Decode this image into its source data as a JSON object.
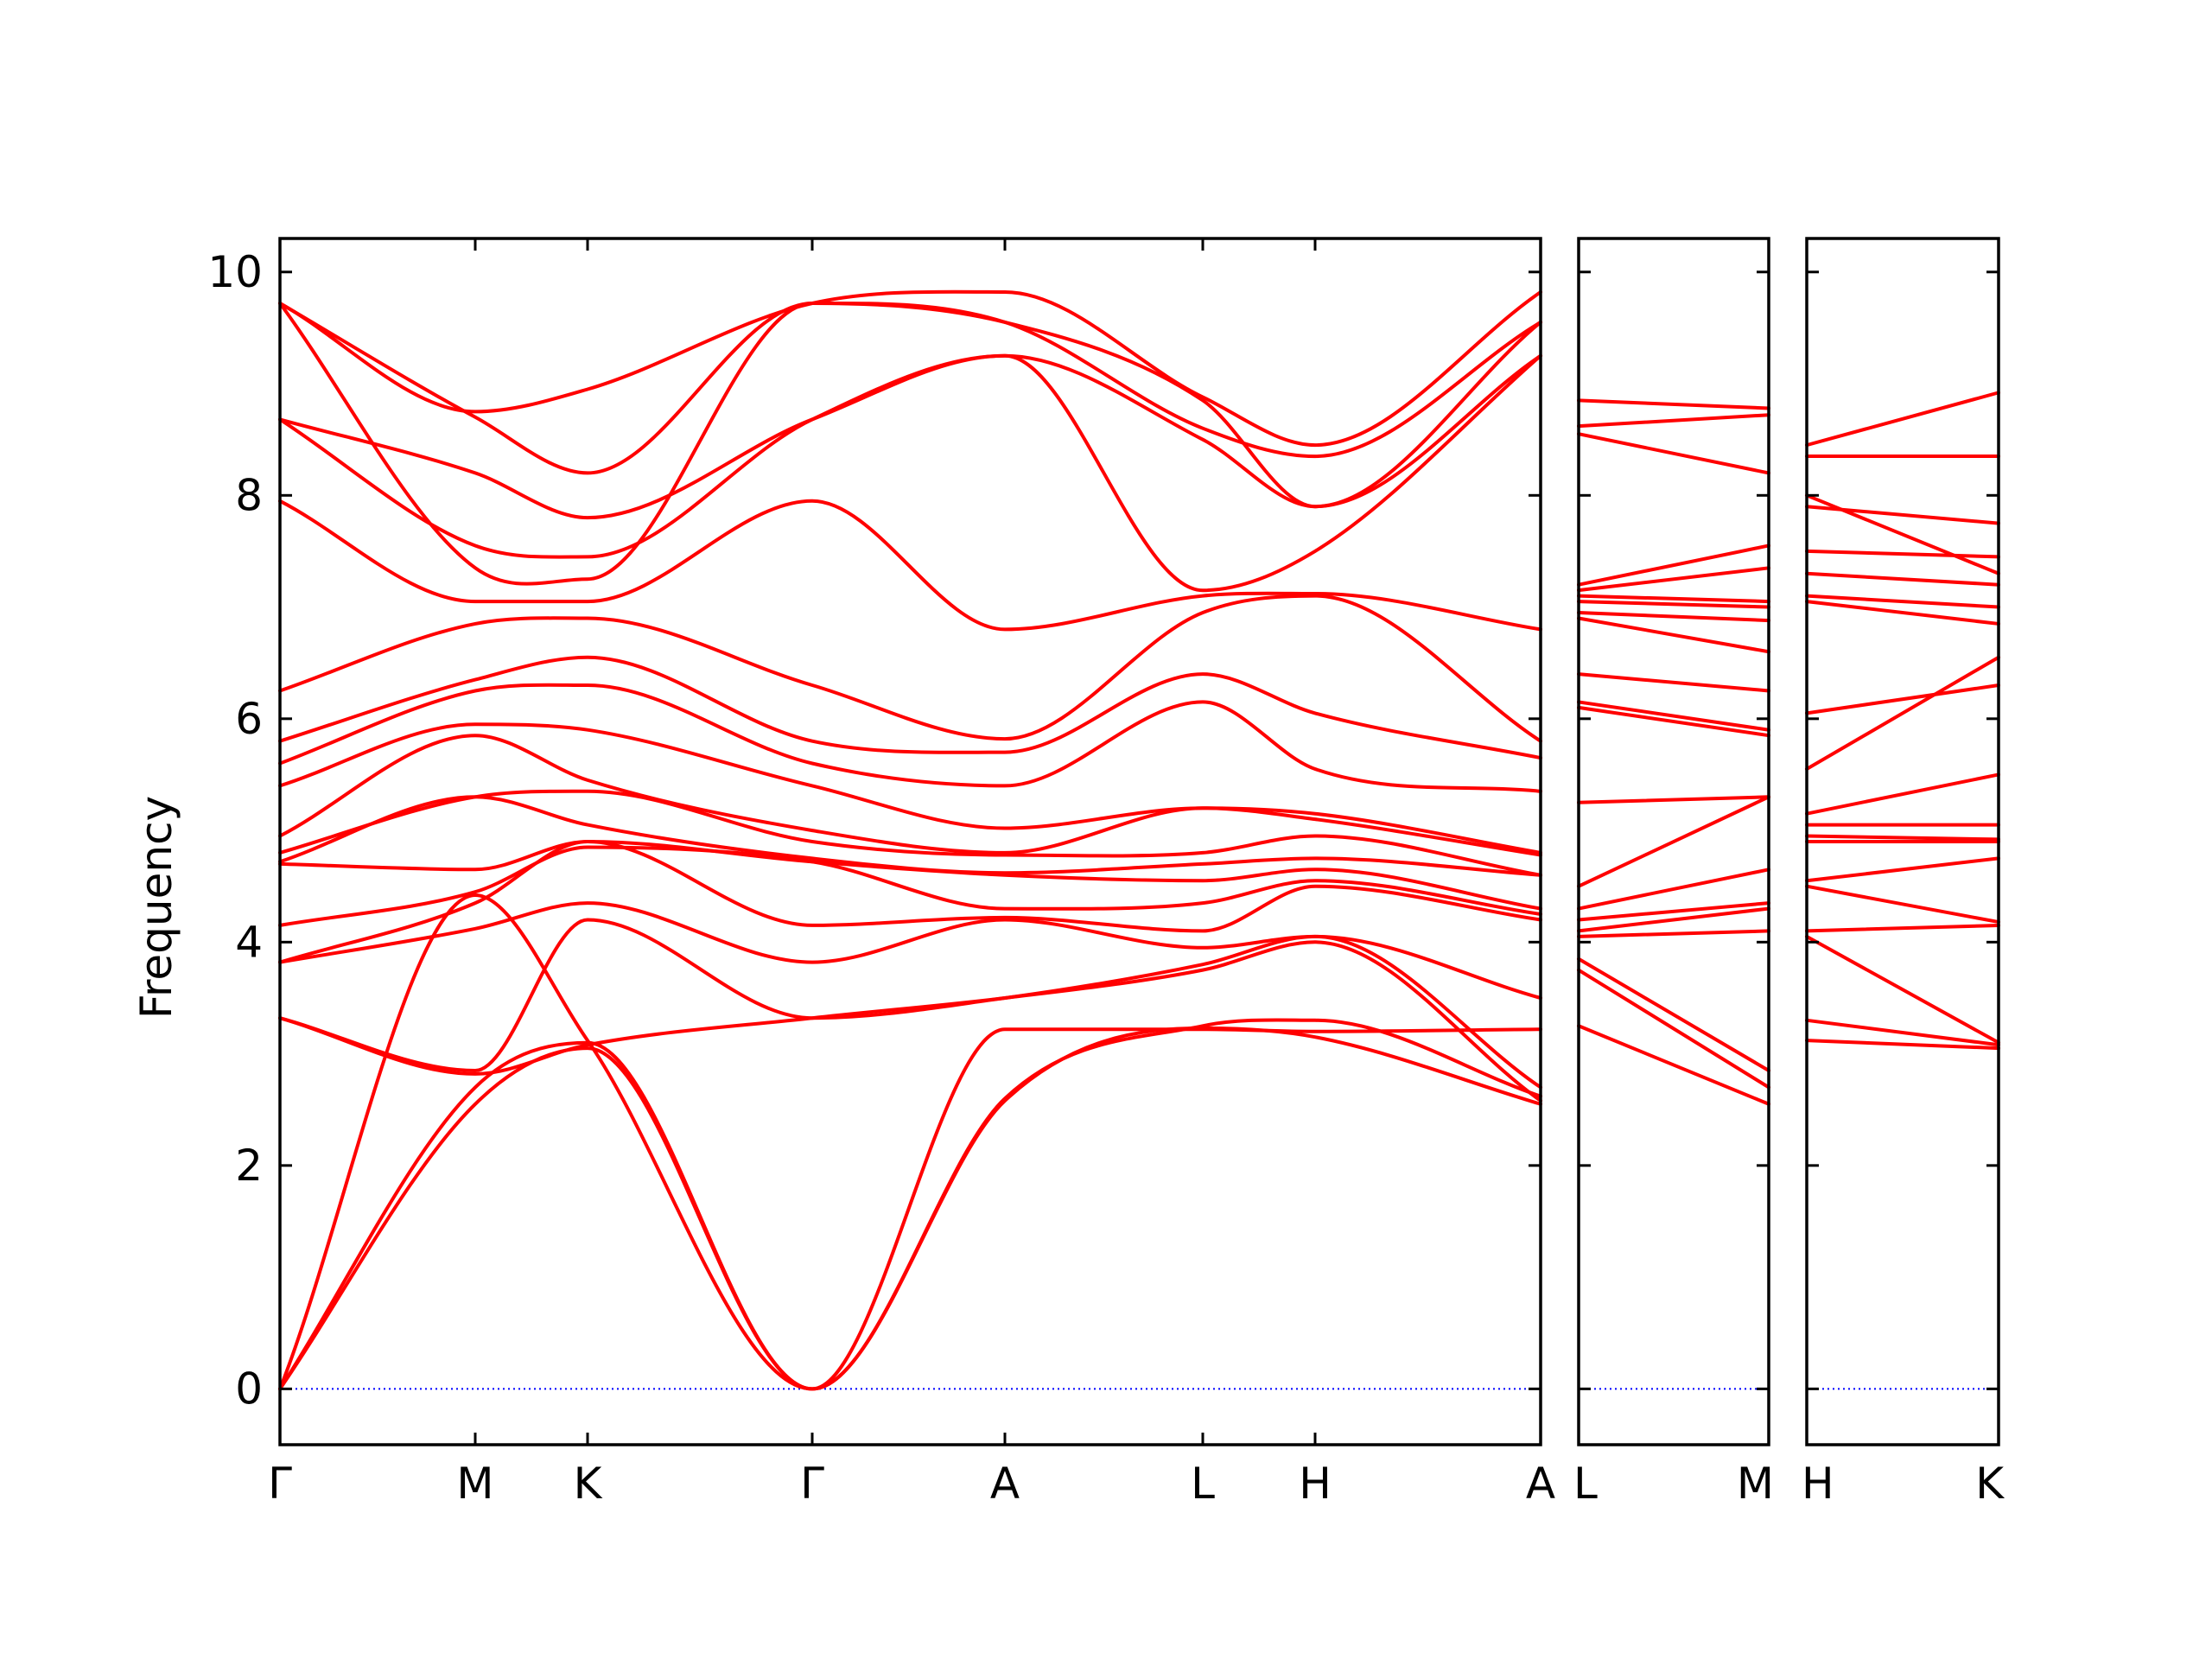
{
  "chart_data": {
    "type": "line",
    "ylabel": "Frequency",
    "xlabel": "",
    "title": "",
    "ylim": [
      -0.5,
      10.3
    ],
    "yticks": [
      0,
      2,
      4,
      6,
      8,
      10
    ],
    "grid": false,
    "legend": "none",
    "colors": {
      "bands": "#ff0000",
      "zero_line": "#0000ff",
      "frame": "#000000"
    },
    "panels": [
      {
        "labels": [
          "Γ",
          "M",
          "K",
          "Γ",
          "A",
          "L",
          "H",
          "A"
        ],
        "bands": [
          {
            "name": "acoustic-1",
            "values": [
              0.0,
              2.55,
              3.05,
              0.0,
              2.58,
              3.23,
              3.15,
              2.55
            ]
          },
          {
            "name": "acoustic-2",
            "values": [
              0.0,
              2.7,
              3.1,
              0.0,
              2.6,
              3.25,
              3.3,
              2.62
            ]
          },
          {
            "name": "acoustic-3",
            "values": [
              0.0,
              4.42,
              3.12,
              0.0,
              3.22,
              3.22,
              3.2,
              3.22
            ]
          },
          {
            "name": "band-4",
            "values": [
              3.32,
              2.82,
              3.08,
              3.32,
              3.5,
              3.75,
              4.0,
              2.58
            ]
          },
          {
            "name": "band-5",
            "values": [
              3.32,
              2.85,
              4.2,
              3.32,
              3.5,
              3.8,
              4.05,
              2.7
            ]
          },
          {
            "name": "band-6",
            "values": [
              3.82,
              4.12,
              4.35,
              3.82,
              4.2,
              3.95,
              4.05,
              3.5
            ]
          },
          {
            "name": "band-7",
            "values": [
              3.82,
              4.35,
              4.9,
              4.15,
              4.22,
              4.1,
              4.5,
              4.2
            ]
          },
          {
            "name": "band-8",
            "values": [
              4.15,
              4.45,
              4.85,
              4.72,
              4.3,
              4.35,
              4.55,
              4.25
            ]
          },
          {
            "name": "band-9",
            "values": [
              4.7,
              4.65,
              4.9,
              4.72,
              4.6,
              4.55,
              4.65,
              4.3
            ]
          },
          {
            "name": "band-10",
            "values": [
              4.72,
              5.3,
              5.05,
              4.75,
              4.62,
              4.7,
              4.75,
              4.6
            ]
          },
          {
            "name": "band-11",
            "values": [
              4.8,
              5.3,
              5.35,
              4.9,
              4.78,
              4.8,
              4.95,
              4.6
            ]
          },
          {
            "name": "band-12",
            "values": [
              4.95,
              5.85,
              5.45,
              5.0,
              4.8,
              5.2,
              5.1,
              4.78
            ]
          },
          {
            "name": "band-13",
            "values": [
              5.4,
              5.95,
              5.9,
              5.4,
              5.02,
              5.2,
              5.15,
              4.8
            ]
          },
          {
            "name": "band-14",
            "values": [
              5.6,
              6.25,
              6.3,
              5.6,
              5.4,
              6.15,
              5.55,
              5.35
            ]
          },
          {
            "name": "band-15",
            "values": [
              5.8,
              6.35,
              6.55,
              5.8,
              5.7,
              6.4,
              6.05,
              5.65
            ]
          },
          {
            "name": "band-16",
            "values": [
              6.25,
              6.85,
              6.9,
              6.3,
              5.82,
              6.95,
              7.1,
              5.8
            ]
          },
          {
            "name": "band-17",
            "values": [
              7.95,
              7.05,
              7.05,
              7.95,
              6.8,
              7.1,
              7.12,
              6.8
            ]
          },
          {
            "name": "band-18",
            "values": [
              8.68,
              7.55,
              7.45,
              8.68,
              9.25,
              7.15,
              7.5,
              9.25
            ]
          },
          {
            "name": "band-19",
            "values": [
              8.68,
              8.2,
              7.8,
              8.68,
              9.25,
              8.5,
              7.9,
              9.25
            ]
          },
          {
            "name": "band-20",
            "values": [
              9.72,
              7.35,
              7.25,
              9.72,
              9.55,
              8.6,
              8.35,
              9.55
            ]
          },
          {
            "name": "band-21",
            "values": [
              9.72,
              8.7,
              8.2,
              9.72,
              9.55,
              8.85,
              7.9,
              9.55
            ]
          },
          {
            "name": "band-22",
            "values": [
              9.72,
              8.75,
              8.95,
              9.72,
              9.82,
              8.88,
              8.45,
              9.82
            ]
          }
        ]
      },
      {
        "labels": [
          "L",
          "M"
        ],
        "bands": [
          {
            "name": "band-1",
            "values": [
              3.25,
              2.55
            ]
          },
          {
            "name": "band-2",
            "values": [
              3.75,
              2.7
            ]
          },
          {
            "name": "band-3",
            "values": [
              3.85,
              2.85
            ]
          },
          {
            "name": "band-4",
            "values": [
              4.05,
              4.1
            ]
          },
          {
            "name": "band-5",
            "values": [
              4.1,
              4.3
            ]
          },
          {
            "name": "band-6",
            "values": [
              4.2,
              4.35
            ]
          },
          {
            "name": "band-7",
            "values": [
              4.3,
              4.65
            ]
          },
          {
            "name": "band-8",
            "values": [
              4.5,
              5.3
            ]
          },
          {
            "name": "band-9",
            "values": [
              5.25,
              5.3
            ]
          },
          {
            "name": "band-10",
            "values": [
              6.1,
              5.85
            ]
          },
          {
            "name": "band-11",
            "values": [
              6.15,
              5.9
            ]
          },
          {
            "name": "band-12",
            "values": [
              6.4,
              6.25
            ]
          },
          {
            "name": "band-13",
            "values": [
              6.9,
              6.6
            ]
          },
          {
            "name": "band-14",
            "values": [
              6.95,
              6.88
            ]
          },
          {
            "name": "band-15",
            "values": [
              7.05,
              7.0
            ]
          },
          {
            "name": "band-16",
            "values": [
              7.1,
              7.05
            ]
          },
          {
            "name": "band-17",
            "values": [
              7.15,
              7.35
            ]
          },
          {
            "name": "band-18",
            "values": [
              7.2,
              7.55
            ]
          },
          {
            "name": "band-19",
            "values": [
              8.55,
              8.2
            ]
          },
          {
            "name": "band-20",
            "values": [
              8.62,
              8.72
            ]
          },
          {
            "name": "band-21",
            "values": [
              8.85,
              8.78
            ]
          }
        ]
      },
      {
        "labels": [
          "H",
          "K"
        ],
        "bands": [
          {
            "name": "band-1",
            "values": [
              3.12,
              3.05
            ]
          },
          {
            "name": "band-2",
            "values": [
              3.3,
              3.08
            ]
          },
          {
            "name": "band-3",
            "values": [
              4.05,
              3.1
            ]
          },
          {
            "name": "band-4",
            "values": [
              4.1,
              4.15
            ]
          },
          {
            "name": "band-5",
            "values": [
              4.5,
              4.18
            ]
          },
          {
            "name": "band-6",
            "values": [
              4.55,
              4.75
            ]
          },
          {
            "name": "band-7",
            "values": [
              4.9,
              4.9
            ]
          },
          {
            "name": "band-8",
            "values": [
              4.95,
              4.92
            ]
          },
          {
            "name": "band-9",
            "values": [
              5.05,
              5.05
            ]
          },
          {
            "name": "band-10",
            "values": [
              5.15,
              5.5
            ]
          },
          {
            "name": "band-11",
            "values": [
              5.55,
              6.55
            ]
          },
          {
            "name": "band-12",
            "values": [
              6.05,
              6.3
            ]
          },
          {
            "name": "band-13",
            "values": [
              7.05,
              6.85
            ]
          },
          {
            "name": "band-14",
            "values": [
              7.1,
              7.0
            ]
          },
          {
            "name": "band-15",
            "values": [
              7.3,
              7.2
            ]
          },
          {
            "name": "band-16",
            "values": [
              7.5,
              7.45
            ]
          },
          {
            "name": "band-17",
            "values": [
              7.9,
              7.75
            ]
          },
          {
            "name": "band-18",
            "values": [
              8.0,
              7.3
            ]
          },
          {
            "name": "band-19",
            "values": [
              8.35,
              8.35
            ]
          },
          {
            "name": "band-20",
            "values": [
              8.45,
              8.92
            ]
          }
        ]
      }
    ]
  }
}
